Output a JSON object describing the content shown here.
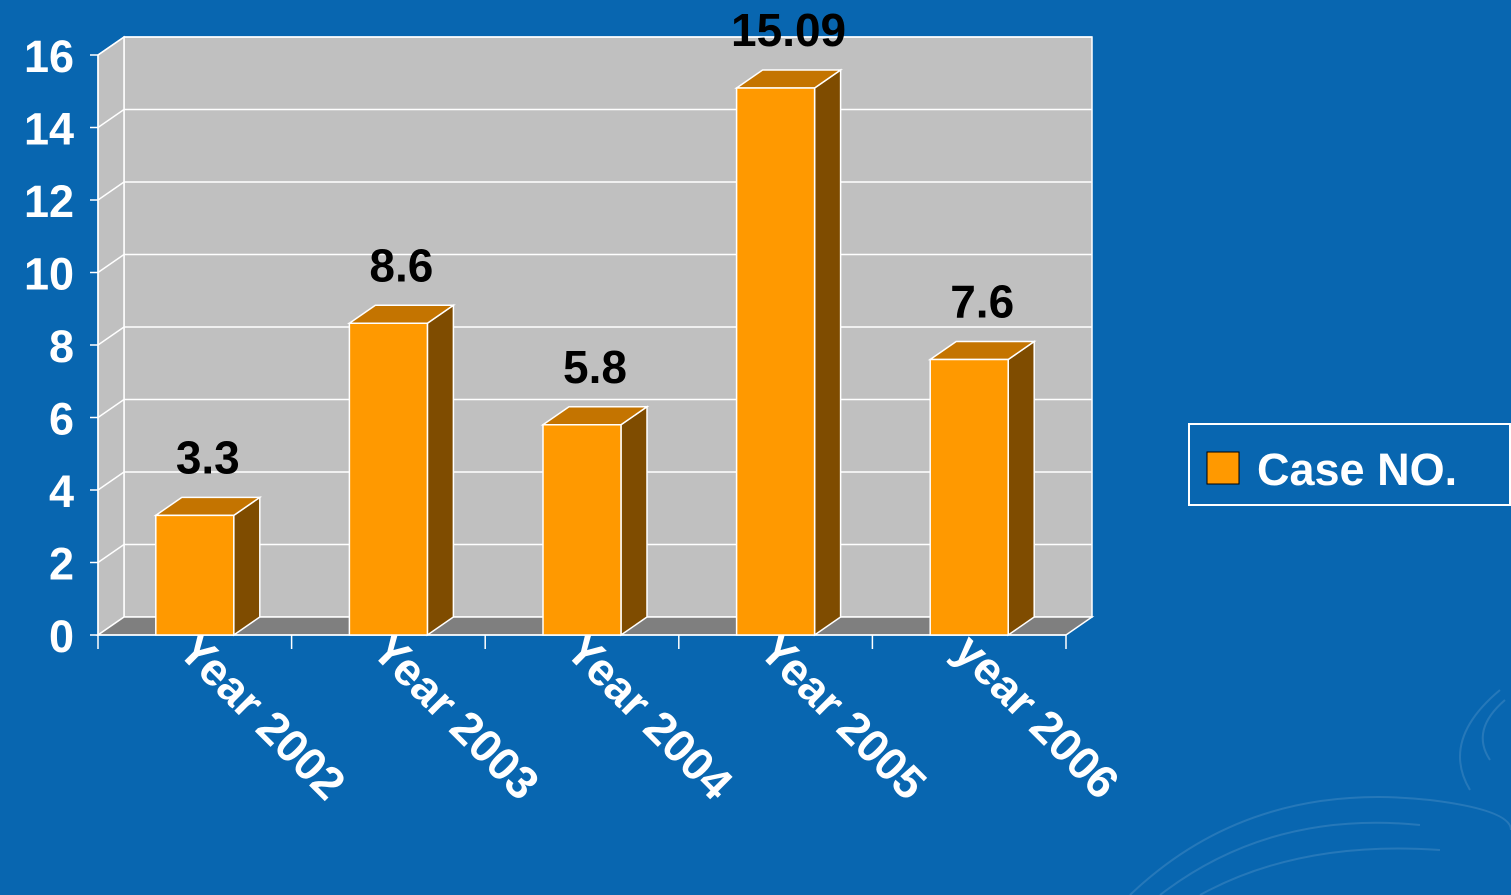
{
  "colors": {
    "background": "#0866b0",
    "plot_back_wall": "#c0c0c0",
    "plot_floor": "#7f7f7f",
    "bar_front": "#ff9900",
    "bar_top": "#c47400",
    "bar_side": "#7f4c00",
    "axis_text": "#ffffff",
    "data_label_text": "#000000"
  },
  "chart_data": {
    "type": "bar",
    "style": "3d-column",
    "categories": [
      "Year 2002",
      "Year 2003",
      "Year 2004",
      "Year 2005",
      "year 2006"
    ],
    "series": [
      {
        "name": "Case NO.",
        "values": [
          3.3,
          8.6,
          5.8,
          15.09,
          7.6
        ]
      }
    ],
    "data_labels": [
      "3.3",
      "8.6",
      "5.8",
      "15.09",
      "7.6"
    ],
    "y_ticks": [
      0,
      2,
      4,
      6,
      8,
      10,
      12,
      14,
      16
    ],
    "ylim": [
      0,
      16
    ],
    "grid": true,
    "legend": {
      "position": "right",
      "entries": [
        "Case NO."
      ]
    }
  }
}
